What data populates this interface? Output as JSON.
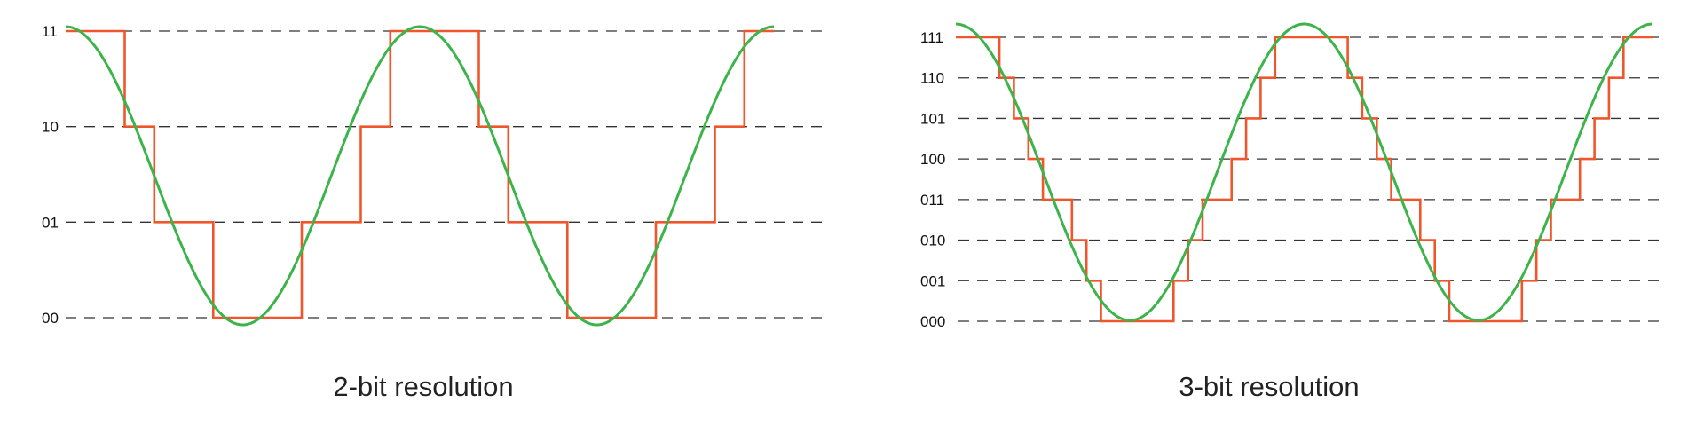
{
  "colors": {
    "analog_signal": "#3cb44b",
    "quantized_signal": "#f0562b",
    "level_line": "#333333"
  },
  "panels": [
    {
      "caption": "2-bit resolution",
      "bits": 2,
      "levels": [
        "00",
        "01",
        "10",
        "11"
      ],
      "cycles": 2,
      "steps_per_cycle": 12,
      "signal": "cosine",
      "phase_start": "maximum"
    },
    {
      "caption": "3-bit resolution",
      "bits": 3,
      "levels": [
        "000",
        "001",
        "010",
        "011",
        "100",
        "101",
        "110",
        "111"
      ],
      "cycles": 2,
      "steps_per_cycle": 24,
      "signal": "cosine",
      "phase_start": "maximum"
    }
  ]
}
